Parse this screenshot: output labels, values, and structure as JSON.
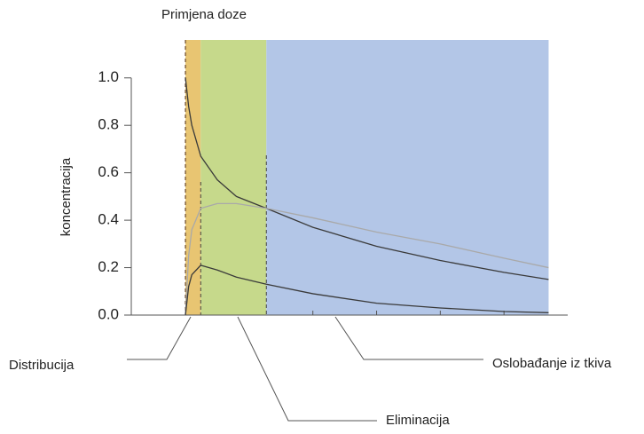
{
  "chart_data": {
    "type": "line",
    "ylabel": "koncentracija",
    "dose_label": "Primjena doze",
    "x": [
      0,
      0.05,
      0.1,
      0.24,
      0.5,
      0.8,
      1.27,
      2,
      3,
      4,
      5,
      5.7
    ],
    "series": [
      {
        "color": "#3a3a3a",
        "values": [
          1.0,
          0.88,
          0.8,
          0.67,
          0.57,
          0.5,
          0.45,
          0.37,
          0.29,
          0.23,
          0.18,
          0.15
        ]
      },
      {
        "color": "#a9a9a9",
        "values": [
          0,
          0.25,
          0.36,
          0.45,
          0.47,
          0.47,
          0.45,
          0.41,
          0.35,
          0.3,
          0.24,
          0.2
        ]
      },
      {
        "color": "#3a3a3a",
        "values": [
          0,
          0.12,
          0.17,
          0.21,
          0.19,
          0.16,
          0.13,
          0.09,
          0.05,
          0.03,
          0.015,
          0.01
        ]
      }
    ],
    "regions": [
      {
        "label": "Distribucija",
        "xlim": [
          0,
          0.24
        ],
        "color": "#e8c572"
      },
      {
        "label": "Eliminacija",
        "xlim": [
          0.24,
          1.27
        ],
        "color": "#c6d98b"
      },
      {
        "label": "Oslobađanje iz tkiva",
        "xlim": [
          1.27,
          5.7
        ],
        "color": "#b3c6e7"
      }
    ],
    "xlim": [
      -0.85,
      6
    ],
    "xticks": [
      2,
      3,
      4,
      5
    ],
    "ylim": [
      0,
      1.16
    ],
    "yticks": [
      {
        "value": 0,
        "label": "0.0"
      },
      0.2,
      0.4,
      0.6,
      0.8,
      {
        "value": 1,
        "label": "1.0"
      }
    ]
  }
}
